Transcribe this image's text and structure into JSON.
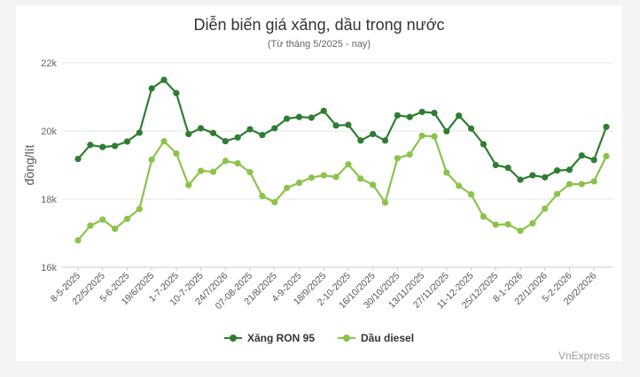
{
  "chart_data": {
    "type": "line",
    "title": "Diễn biến giá xăng, dầu trong nước",
    "subtitle": "(Từ tháng 5/2025 - nay)",
    "ylabel": "đồng/lít",
    "ylim": [
      16000,
      22000
    ],
    "yticks": [
      16000,
      18000,
      20000,
      22000
    ],
    "ytick_labels": [
      "16k",
      "18k",
      "20k",
      "22k"
    ],
    "x_labels": [
      "8-5-2025",
      "22/5/2025",
      "5-6-2025",
      "19/6/2025",
      "1-7-2025",
      "10-7-2025",
      "24/7/2026",
      "07-08-2025",
      "21/8/2025",
      "4-9-2025",
      "18/9/2025",
      "2-10-2025",
      "16/10/2025",
      "30/10/2025",
      "13/11/2025",
      "27/11/2025",
      "11-12-2025",
      "25/12/2025",
      "8-1-2026",
      "22/1/2026",
      "5-2-2026",
      "20/2/2026"
    ],
    "x_label_every": 2,
    "grid": true,
    "legend": "bottom-center",
    "series": [
      {
        "name": "Xăng RON 95",
        "color": "#2e7d32",
        "values": [
          19180,
          19590,
          19530,
          19560,
          19690,
          19950,
          21250,
          21500,
          21110,
          19910,
          20080,
          19940,
          19700,
          19810,
          20050,
          19880,
          20080,
          20360,
          20410,
          20390,
          20590,
          20160,
          20180,
          19720,
          19910,
          19720,
          20460,
          20410,
          20560,
          20530,
          19990,
          20450,
          20070,
          19610,
          19000,
          18920,
          18570,
          18700,
          18640,
          18840,
          18860,
          19280,
          19150,
          20120
        ]
      },
      {
        "name": "Dầu diesel",
        "color": "#8bc34a",
        "values": [
          16790,
          17220,
          17400,
          17130,
          17420,
          17710,
          19160,
          19700,
          19340,
          18410,
          18830,
          18800,
          19120,
          19050,
          18790,
          18090,
          17910,
          18330,
          18480,
          18630,
          18700,
          18650,
          19020,
          18600,
          18420,
          17900,
          19200,
          19310,
          19860,
          19840,
          18780,
          18390,
          18140,
          17490,
          17250,
          17260,
          17070,
          17290,
          17720,
          18150,
          18440,
          18440,
          18520,
          19260
        ]
      }
    ]
  },
  "credit": "VnExpress"
}
